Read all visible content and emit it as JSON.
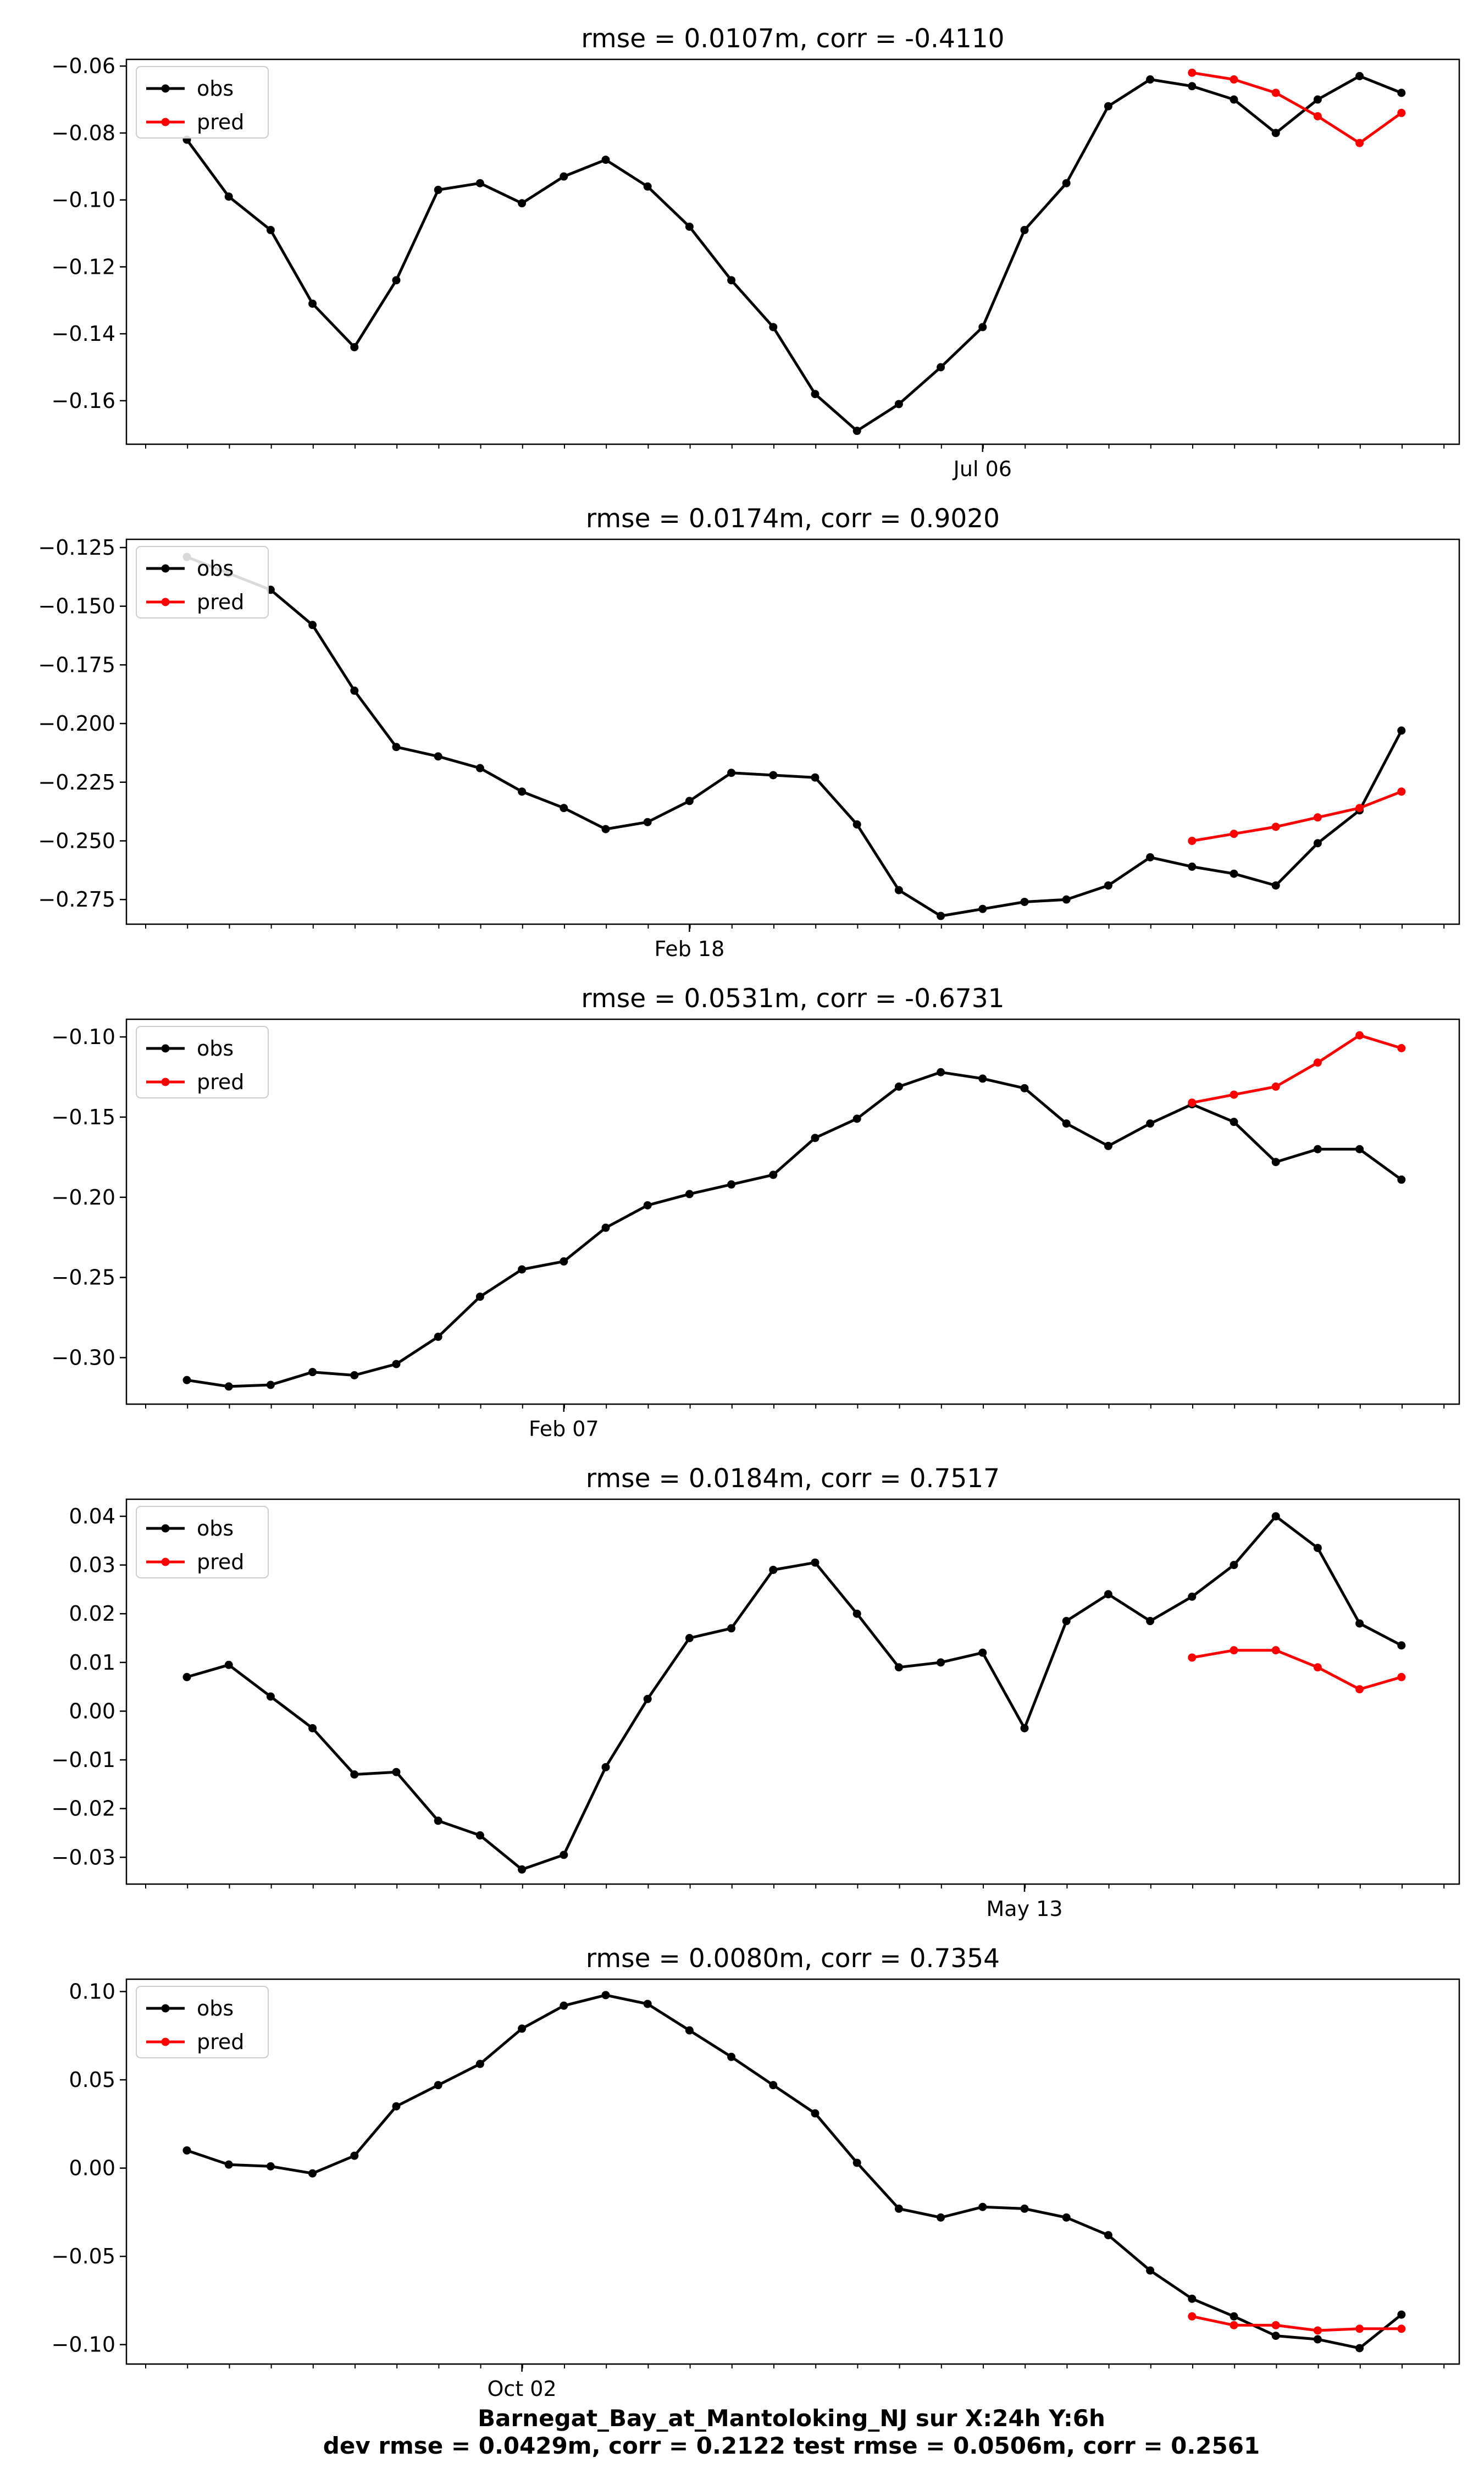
{
  "figure": {
    "footer_line1": "Barnegat_Bay_at_Mantoloking_NJ   sur   X:24h   Y:6h",
    "footer_line2": "dev rmse = 0.0429m, corr = 0.2122   test rmse = 0.0506m, corr = 0.2561",
    "colors": {
      "obs": "#000000",
      "pred": "#ff0000"
    }
  },
  "chart_data": [
    {
      "type": "line",
      "title": "rmse = 0.0107m, corr = -0.4110",
      "x_tick_label": "Jul 06",
      "x_tick_label_index": 19,
      "ylim": [
        -0.173,
        -0.058
      ],
      "yticks": [
        -0.06,
        -0.08,
        -0.1,
        -0.12,
        -0.14,
        -0.16
      ],
      "ytick_labels": [
        "−0.06",
        "−0.08",
        "−0.10",
        "−0.12",
        "−0.14",
        "−0.16"
      ],
      "legend": {
        "position": "upper-left",
        "entries": [
          "obs",
          "pred"
        ]
      },
      "series": [
        {
          "name": "obs",
          "x": [
            0,
            1,
            2,
            3,
            4,
            5,
            6,
            7,
            8,
            9,
            10,
            11,
            12,
            13,
            14,
            15,
            16,
            17,
            18,
            19,
            20,
            21,
            22,
            23,
            24,
            25,
            26,
            27,
            28,
            29
          ],
          "values": [
            -0.082,
            -0.099,
            -0.109,
            -0.131,
            -0.144,
            -0.124,
            -0.097,
            -0.095,
            -0.101,
            -0.093,
            -0.088,
            -0.096,
            -0.108,
            -0.124,
            -0.138,
            -0.158,
            -0.169,
            -0.161,
            -0.15,
            -0.138,
            -0.109,
            -0.095,
            -0.072,
            -0.064,
            -0.066,
            -0.07,
            -0.08,
            -0.07,
            -0.063,
            -0.068
          ]
        },
        {
          "name": "pred",
          "x": [
            24,
            25,
            26,
            27,
            28,
            29
          ],
          "values": [
            -0.062,
            -0.064,
            -0.068,
            -0.075,
            -0.083,
            -0.074
          ]
        }
      ]
    },
    {
      "type": "line",
      "title": "rmse = 0.0174m, corr = 0.9020",
      "x_tick_label": "Feb 18",
      "x_tick_label_index": 12,
      "ylim": [
        -0.2855,
        -0.1215
      ],
      "yticks": [
        -0.125,
        -0.15,
        -0.175,
        -0.2,
        -0.225,
        -0.25,
        -0.275
      ],
      "ytick_labels": [
        "−0.125",
        "−0.150",
        "−0.175",
        "−0.200",
        "−0.225",
        "−0.250",
        "−0.275"
      ],
      "legend": {
        "position": "upper-left",
        "entries": [
          "obs",
          "pred"
        ]
      },
      "series": [
        {
          "name": "obs",
          "x": [
            0,
            1,
            2,
            3,
            4,
            5,
            6,
            7,
            8,
            9,
            10,
            11,
            12,
            13,
            14,
            15,
            16,
            17,
            18,
            19,
            20,
            21,
            22,
            23,
            24,
            25,
            26,
            27,
            28,
            29
          ],
          "values": [
            -0.129,
            -0.136,
            -0.143,
            -0.158,
            -0.186,
            -0.21,
            -0.214,
            -0.219,
            -0.229,
            -0.236,
            -0.245,
            -0.242,
            -0.233,
            -0.221,
            -0.222,
            -0.223,
            -0.243,
            -0.271,
            -0.282,
            -0.279,
            -0.276,
            -0.275,
            -0.269,
            -0.257,
            -0.261,
            -0.264,
            -0.269,
            -0.251,
            -0.237,
            -0.203
          ]
        },
        {
          "name": "pred",
          "x": [
            24,
            25,
            26,
            27,
            28,
            29
          ],
          "values": [
            -0.25,
            -0.247,
            -0.244,
            -0.24,
            -0.236,
            -0.229
          ]
        }
      ]
    },
    {
      "type": "line",
      "title": "rmse = 0.0531m, corr = -0.6731",
      "x_tick_label": "Feb 07",
      "x_tick_label_index": 9,
      "ylim": [
        -0.329,
        -0.089
      ],
      "yticks": [
        -0.1,
        -0.15,
        -0.2,
        -0.25,
        -0.3
      ],
      "ytick_labels": [
        "−0.10",
        "−0.15",
        "−0.20",
        "−0.25",
        "−0.30"
      ],
      "legend": {
        "position": "upper-left",
        "entries": [
          "obs",
          "pred"
        ]
      },
      "series": [
        {
          "name": "obs",
          "x": [
            0,
            1,
            2,
            3,
            4,
            5,
            6,
            7,
            8,
            9,
            10,
            11,
            12,
            13,
            14,
            15,
            16,
            17,
            18,
            19,
            20,
            21,
            22,
            23,
            24,
            25,
            26,
            27,
            28,
            29
          ],
          "values": [
            -0.314,
            -0.318,
            -0.317,
            -0.309,
            -0.311,
            -0.304,
            -0.287,
            -0.262,
            -0.245,
            -0.24,
            -0.219,
            -0.205,
            -0.198,
            -0.192,
            -0.186,
            -0.163,
            -0.151,
            -0.131,
            -0.122,
            -0.126,
            -0.132,
            -0.154,
            -0.168,
            -0.154,
            -0.142,
            -0.153,
            -0.178,
            -0.17,
            -0.17,
            -0.189
          ]
        },
        {
          "name": "pred",
          "x": [
            24,
            25,
            26,
            27,
            28,
            29
          ],
          "values": [
            -0.141,
            -0.136,
            -0.131,
            -0.116,
            -0.099,
            -0.107
          ]
        }
      ]
    },
    {
      "type": "line",
      "title": "rmse = 0.0184m, corr = 0.7517",
      "x_tick_label": "May 13",
      "x_tick_label_index": 20,
      "ylim": [
        -0.0355,
        0.0435
      ],
      "yticks": [
        0.04,
        0.03,
        0.02,
        0.01,
        0.0,
        -0.01,
        -0.02,
        -0.03
      ],
      "ytick_labels": [
        "0.04",
        "0.03",
        "0.02",
        "0.01",
        "0.00",
        "−0.01",
        "−0.02",
        "−0.03"
      ],
      "legend": {
        "position": "upper-left",
        "entries": [
          "obs",
          "pred"
        ]
      },
      "series": [
        {
          "name": "obs",
          "x": [
            0,
            1,
            2,
            3,
            4,
            5,
            6,
            7,
            8,
            9,
            10,
            11,
            12,
            13,
            14,
            15,
            16,
            17,
            18,
            19,
            20,
            21,
            22,
            23,
            24,
            25,
            26,
            27,
            28,
            29
          ],
          "values": [
            0.007,
            0.0095,
            0.003,
            -0.0035,
            -0.013,
            -0.0125,
            -0.0225,
            -0.0255,
            -0.0325,
            -0.0295,
            -0.0115,
            0.0025,
            0.015,
            0.017,
            0.029,
            0.0305,
            0.02,
            0.009,
            0.01,
            0.012,
            -0.0035,
            0.0185,
            0.024,
            0.0185,
            0.0235,
            0.03,
            0.04,
            0.0335,
            0.018,
            0.0135
          ]
        },
        {
          "name": "pred",
          "x": [
            24,
            25,
            26,
            27,
            28,
            29
          ],
          "values": [
            0.011,
            0.0125,
            0.0125,
            0.009,
            0.0045,
            0.007
          ]
        }
      ]
    },
    {
      "type": "line",
      "title": "rmse = 0.0080m, corr = 0.7354",
      "x_tick_label": "Oct 02",
      "x_tick_label_index": 8,
      "ylim": [
        -0.111,
        0.107
      ],
      "yticks": [
        0.1,
        0.05,
        0.0,
        -0.05,
        -0.1
      ],
      "ytick_labels": [
        "0.10",
        "0.05",
        "0.00",
        "−0.05",
        "−0.10"
      ],
      "legend": {
        "position": "upper-left",
        "entries": [
          "obs",
          "pred"
        ]
      },
      "series": [
        {
          "name": "obs",
          "x": [
            0,
            1,
            2,
            3,
            4,
            5,
            6,
            7,
            8,
            9,
            10,
            11,
            12,
            13,
            14,
            15,
            16,
            17,
            18,
            19,
            20,
            21,
            22,
            23,
            24,
            25,
            26,
            27,
            28,
            29
          ],
          "values": [
            0.01,
            0.002,
            0.001,
            -0.003,
            0.007,
            0.035,
            0.047,
            0.059,
            0.079,
            0.092,
            0.098,
            0.093,
            0.078,
            0.063,
            0.047,
            0.031,
            0.003,
            -0.023,
            -0.028,
            -0.022,
            -0.023,
            -0.028,
            -0.038,
            -0.058,
            -0.074,
            -0.084,
            -0.095,
            -0.097,
            -0.102,
            -0.083
          ]
        },
        {
          "name": "pred",
          "x": [
            24,
            25,
            26,
            27,
            28,
            29
          ],
          "values": [
            -0.084,
            -0.089,
            -0.089,
            -0.092,
            -0.091,
            -0.091
          ]
        }
      ]
    }
  ]
}
